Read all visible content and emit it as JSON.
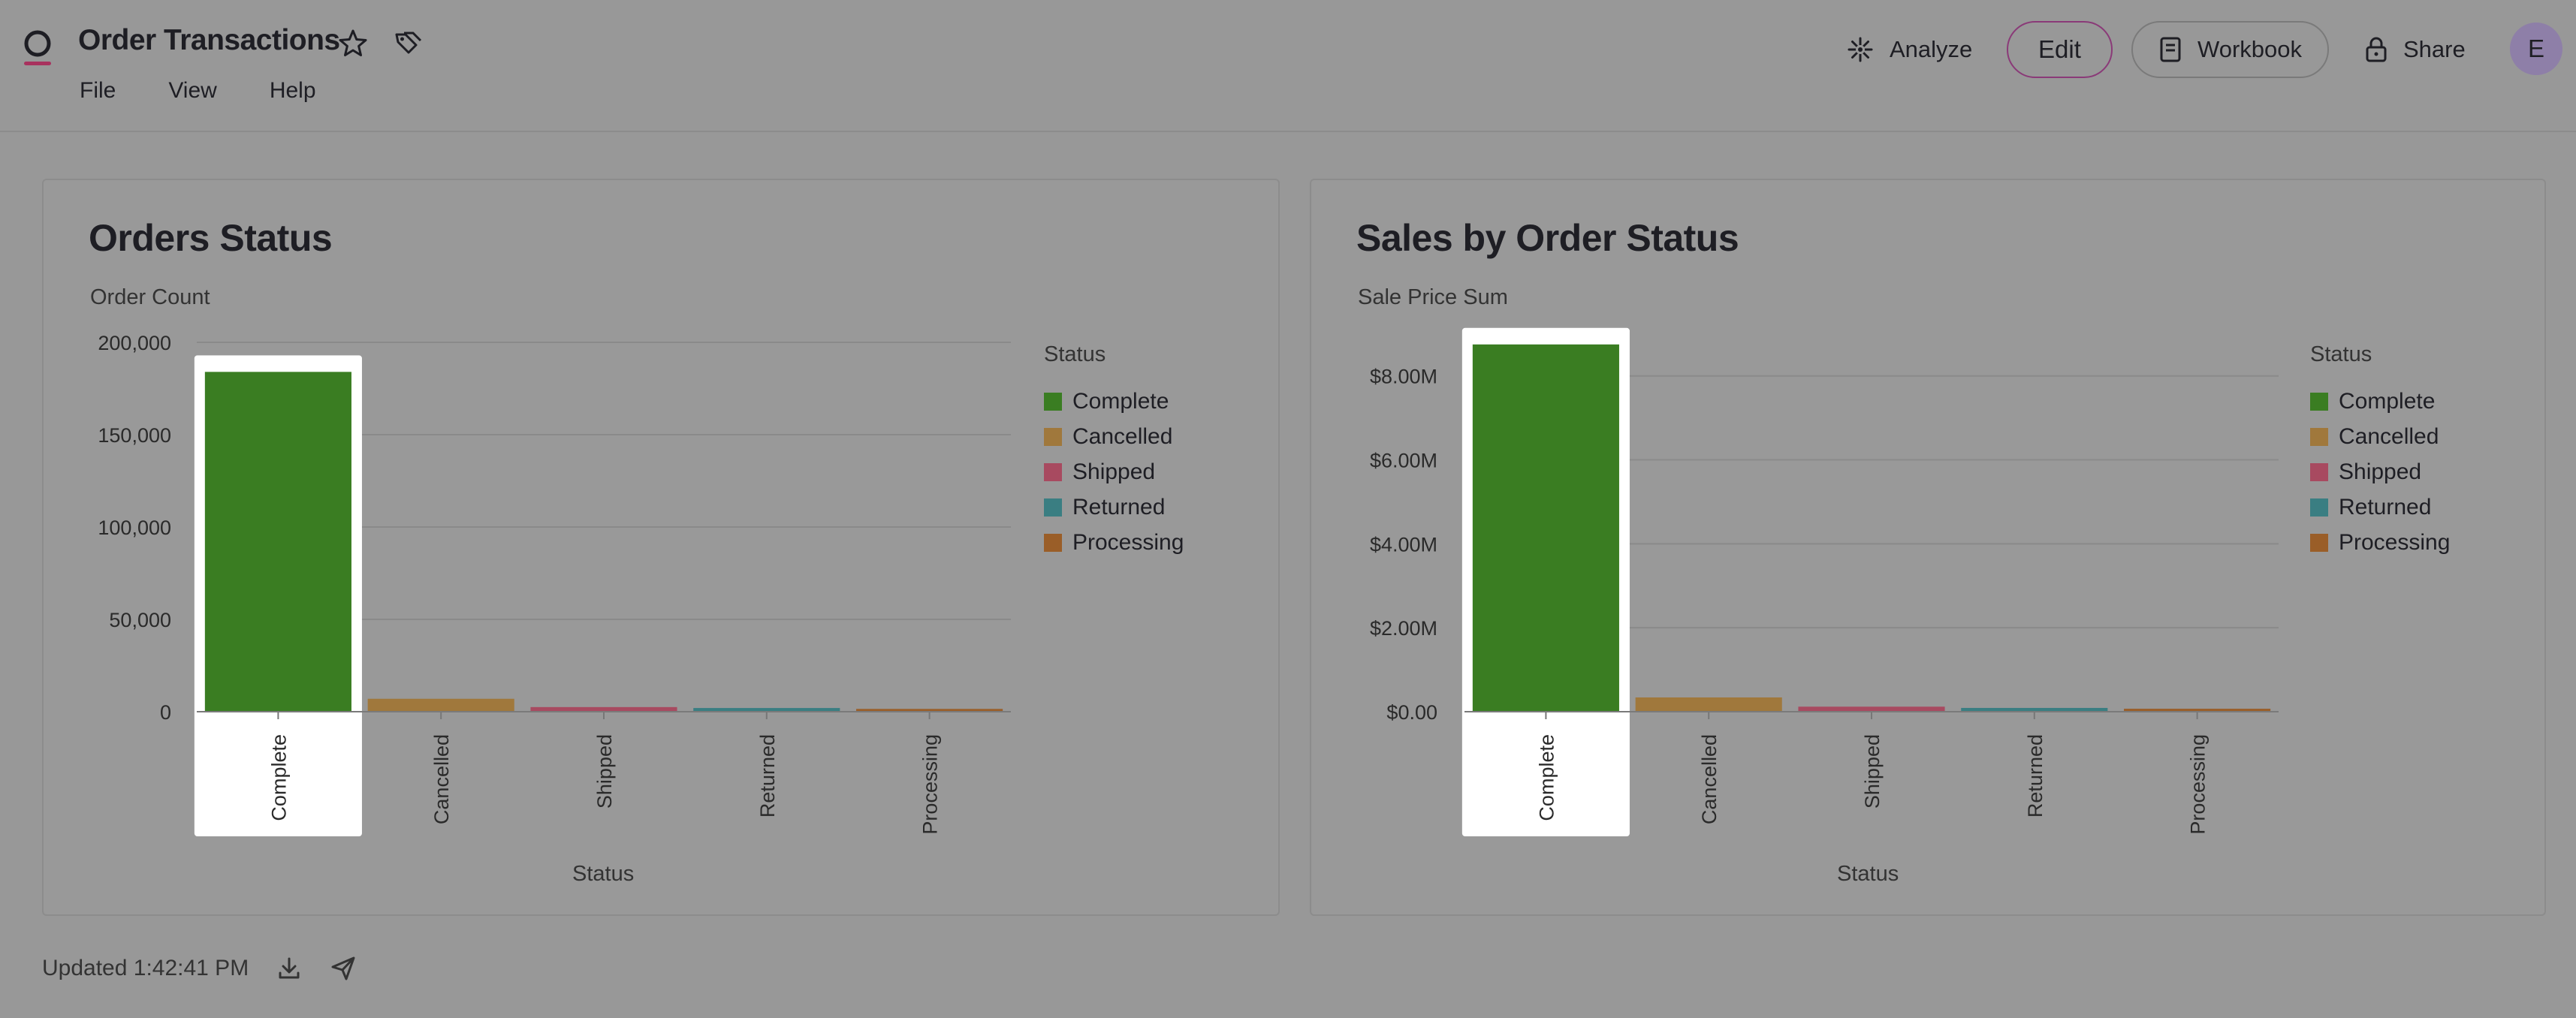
{
  "header": {
    "title": "Order Transactions",
    "menu": [
      "File",
      "View",
      "Help"
    ],
    "analyze_label": "Analyze",
    "edit_label": "Edit",
    "workbook_label": "Workbook",
    "share_label": "Share",
    "avatar_initial": "E"
  },
  "colors": {
    "Complete": "#3a7d22",
    "Cancelled": "#a0783c",
    "Shipped": "#a84a60",
    "Returned": "#3a7e82",
    "Processing": "#9a5e28",
    "highlight": "#ffffff",
    "accent": "#8a3a78"
  },
  "panels": [
    {
      "title": "Orders Status",
      "subtitle": "Order Count",
      "legend_title": "Status",
      "legend": [
        "Complete",
        "Cancelled",
        "Shipped",
        "Returned",
        "Processing"
      ],
      "x_title": "Status"
    },
    {
      "title": "Sales by Order Status",
      "subtitle": "Sale Price Sum",
      "legend_title": "Status",
      "legend": [
        "Complete",
        "Cancelled",
        "Shipped",
        "Returned",
        "Processing"
      ],
      "x_title": "Status"
    }
  ],
  "chart_data": [
    {
      "type": "bar",
      "title": "Orders Status",
      "ylabel": "Order Count",
      "xlabel": "Status",
      "categories": [
        "Complete",
        "Cancelled",
        "Shipped",
        "Returned",
        "Processing"
      ],
      "values": [
        184000,
        7000,
        2500,
        2000,
        1500
      ],
      "ylim": [
        0,
        200000
      ],
      "yticks": [
        0,
        50000,
        100000,
        150000,
        200000
      ],
      "ytick_labels": [
        "0",
        "50,000",
        "100,000",
        "150,000",
        "200,000"
      ],
      "highlighted": "Complete",
      "legend_title": "Status",
      "legend_position": "right",
      "grid": true
    },
    {
      "type": "bar",
      "title": "Sales by Order Status",
      "ylabel": "Sale Price Sum",
      "xlabel": "Status",
      "categories": [
        "Complete",
        "Cancelled",
        "Shipped",
        "Returned",
        "Processing"
      ],
      "values": [
        8750000,
        340000,
        120000,
        90000,
        70000
      ],
      "ylim": [
        0,
        8800000
      ],
      "yticks": [
        0,
        2000000,
        4000000,
        6000000,
        8000000
      ],
      "ytick_labels": [
        "$0.00",
        "$2.00M",
        "$4.00M",
        "$6.00M",
        "$8.00M"
      ],
      "highlighted": "Complete",
      "legend_title": "Status",
      "legend_position": "right",
      "grid": true
    }
  ],
  "footer": {
    "updated": "Updated 1:42:41 PM"
  }
}
